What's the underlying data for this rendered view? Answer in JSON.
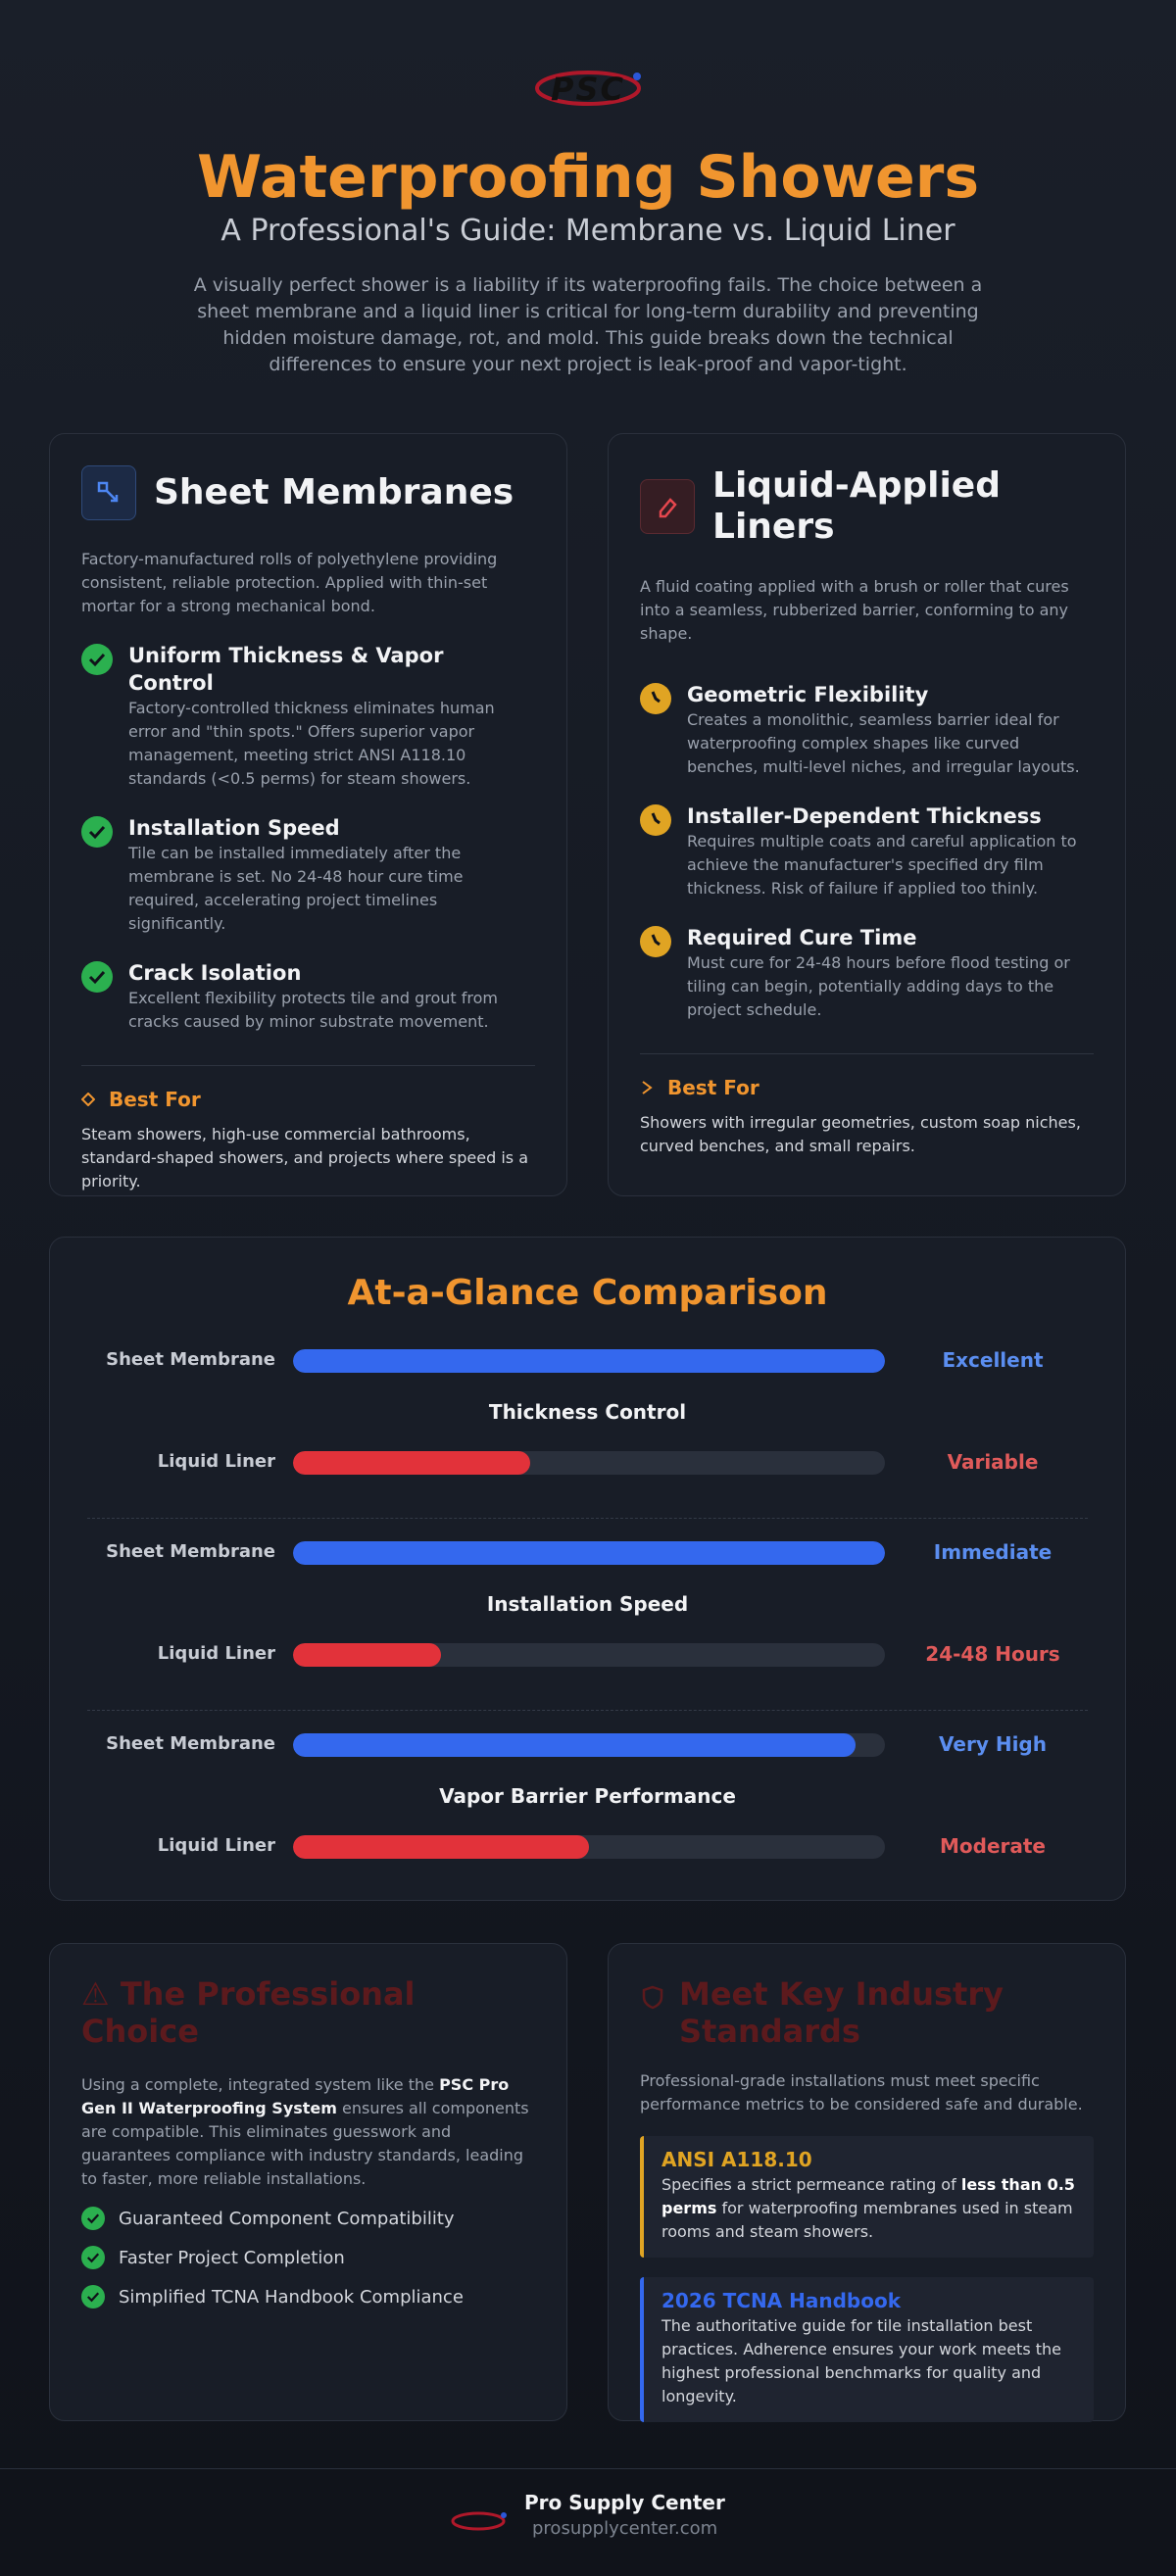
{
  "logo": "PSC",
  "header": {
    "title": "Waterproofing Showers",
    "subtitle": "A Professional's Guide: Membrane vs. Liquid Liner",
    "intro": "A visually perfect shower is a liability if its waterproofing fails. The choice between a sheet membrane and a liquid liner is critical for long-term durability and preventing hidden moisture damage, rot, and mold. This guide breaks down the technical differences to ensure your next project is leak-proof and vapor-tight."
  },
  "cards": [
    {
      "title": "Sheet Membranes",
      "description": "Factory-manufactured rolls of polyethylene providing consistent, reliable protection. Applied with thin-set mortar for a strong mechanical bond.",
      "features": [
        {
          "title": "Uniform Thickness & Vapor Control",
          "text": "Factory-controlled thickness eliminates human error and \"thin spots.\" Offers superior vapor management, meeting strict ANSI A118.10 standards (<0.5 perms) for steam showers."
        },
        {
          "title": "Installation Speed",
          "text": "Tile can be installed immediately after the membrane is set. No 24-48 hour cure time required, accelerating project timelines significantly."
        },
        {
          "title": "Crack Isolation",
          "text": "Excellent flexibility protects tile and grout from cracks caused by minor substrate movement."
        }
      ],
      "best_for_label": "Best For",
      "best_for_text": "Steam showers, high-use commercial bathrooms, standard-shaped showers, and projects where speed is a priority."
    },
    {
      "title": "Liquid-Applied Liners",
      "description": "A fluid coating applied with a brush or roller that cures into a seamless, rubberized barrier, conforming to any shape.",
      "features": [
        {
          "title": "Geometric Flexibility",
          "text": "Creates a monolithic, seamless barrier ideal for waterproofing complex shapes like curved benches, multi-level niches, and irregular layouts."
        },
        {
          "title": "Installer-Dependent Thickness",
          "text": "Requires multiple coats and careful application to achieve the manufacturer's specified dry film thickness. Risk of failure if applied too thinly."
        },
        {
          "title": "Required Cure Time",
          "text": "Must cure for 24-48 hours before flood testing or tiling can begin, potentially adding days to the project schedule."
        }
      ],
      "best_for_label": "Best For",
      "best_for_text": "Showers with irregular geometries, custom soap niches, curved benches, and small repairs."
    }
  ],
  "comparison": {
    "title": "At-a-Glance Comparison",
    "rows": [
      {
        "metric": "Thickness Control",
        "items": [
          {
            "label": "Sheet Membrane",
            "value": 100,
            "rating": "Excellent",
            "color": "#3468ee"
          },
          {
            "label": "Liquid Liner",
            "value": 40,
            "rating": "Variable",
            "color": "#e2323a"
          }
        ]
      },
      {
        "metric": "Installation Speed",
        "items": [
          {
            "label": "Sheet Membrane",
            "value": 100,
            "rating": "Immediate",
            "color": "#3468ee"
          },
          {
            "label": "Liquid Liner",
            "value": 25,
            "rating": "24-48 Hours",
            "color": "#e2323a"
          }
        ]
      },
      {
        "metric": "Vapor Barrier Performance",
        "items": [
          {
            "label": "Sheet Membrane",
            "value": 95,
            "rating": "Very High",
            "color": "#3468ee"
          },
          {
            "label": "Liquid Liner",
            "value": 50,
            "rating": "Moderate",
            "color": "#e2323a"
          }
        ]
      }
    ]
  },
  "professional": {
    "title": "⚠ The Professional Choice",
    "text_before": "Using a complete, integrated system like the",
    "text_bold": "PSC Pro Gen II Waterproofing System",
    "text_after": "ensures all components are compatible. This eliminates guesswork and guarantees compliance with industry standards, leading to faster, more reliable installations.",
    "benefits": [
      "Guaranteed Component Compatibility",
      "Faster Project Completion",
      "Simplified TCNA Handbook Compliance"
    ]
  },
  "standards": {
    "title": "Meet Key Industry Standards",
    "intro": "Professional-grade installations must meet specific performance metrics to be considered safe and durable.",
    "items": [
      {
        "title": "ANSI A118.10",
        "text_before": "Specifies a strict permeance rating of",
        "text_bold": "less than 0.5 perms",
        "text_after": "for waterproofing membranes used in steam rooms and steam showers.",
        "color": "#e0a423"
      },
      {
        "title": "2026 TCNA Handbook",
        "text": "The authoritative guide for tile installation best practices. Adherence ensures your work meets the highest professional benchmarks for quality and longevity.",
        "color": "#3468ee"
      }
    ]
  },
  "footer": {
    "name": "Pro Supply Center",
    "url": "prosupplycenter.com"
  }
}
